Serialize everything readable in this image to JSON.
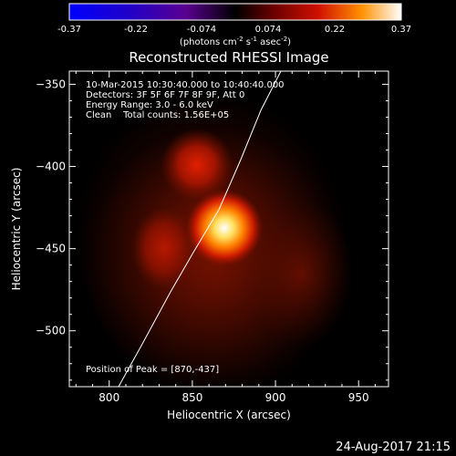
{
  "colorbar": {
    "ticks": [
      "-0.37",
      "-0.22",
      "-0.074",
      "0.074",
      "0.22",
      "0.37"
    ],
    "units_main": "(photons cm",
    "units_exp1": "-2",
    "units_mid": " s",
    "units_exp2": "-1",
    "units_end": " asec",
    "units_exp3": "-2",
    "units_close": ")",
    "range": [
      -0.37,
      0.37
    ]
  },
  "title": "Reconstructed RHESSI Image",
  "info": {
    "line1": "10-Mar-2015 10:30:40.000 to 10:40:40.000",
    "line2": "Detectors: 3F 5F 6F 7F 8F 9F, Att 0",
    "line3": "Energy Range: 3.0 - 6.0 keV",
    "line4": "Clean    Total counts: 1.56E+05"
  },
  "peak": "Position of Peak = [870,-437]",
  "footer_timestamp": "24-Aug-2017 21:15",
  "chart_data": {
    "type": "heatmap",
    "title": "Reconstructed RHESSI Image",
    "xlabel": "Heliocentric X (arcsec)",
    "ylabel": "Heliocentric Y (arcsec)",
    "xlim": [
      776,
      968
    ],
    "ylim": [
      -534,
      -342
    ],
    "xticks": [
      800,
      850,
      900,
      950
    ],
    "yticks": [
      -350,
      -400,
      -450,
      -500
    ],
    "colormap": "hot",
    "sources": [
      {
        "x": 870,
        "y": -437,
        "peak": 0.37
      },
      {
        "x": 842,
        "y": -398,
        "peak": 0.16
      },
      {
        "x": 822,
        "y": -448,
        "peak": 0.11
      }
    ],
    "limb_curve": [
      [
        807,
        -534
      ],
      [
        822,
        -510
      ],
      [
        840,
        -480
      ],
      [
        855,
        -455
      ],
      [
        870,
        -430
      ],
      [
        884,
        -400
      ],
      [
        897,
        -370
      ],
      [
        910,
        -342
      ]
    ]
  }
}
